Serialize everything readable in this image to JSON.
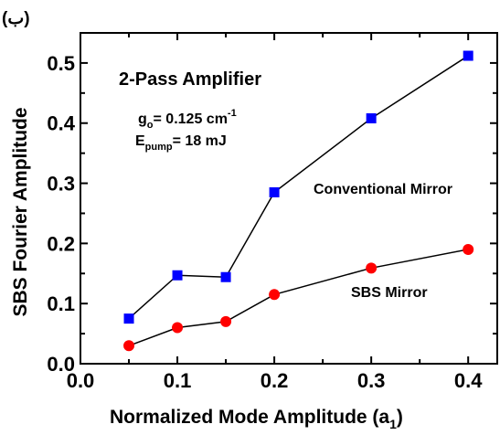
{
  "chart_data": {
    "type": "line",
    "panel_label": "(ب)",
    "title": "2-Pass Amplifier",
    "annotation_g": {
      "main": "g",
      "sub": "o",
      "rest": "= 0.125 cm",
      "sup": "-1"
    },
    "annotation_e": {
      "main": "E",
      "sub": "pump",
      "rest": "= 18 mJ"
    },
    "xlabel": {
      "main": "Normalized Mode Amplitude (a",
      "sub": "1",
      "close": ")"
    },
    "ylabel": "SBS  Fourier  Amplitude",
    "xlim": [
      0.0,
      0.43
    ],
    "ylim": [
      0.0,
      0.55
    ],
    "xticks": [
      0.0,
      0.1,
      0.2,
      0.3,
      0.4
    ],
    "xtick_labels": [
      "0.0",
      "0.1",
      "0.2",
      "0.3",
      "0.4"
    ],
    "yticks": [
      0.0,
      0.1,
      0.2,
      0.3,
      0.4,
      0.5
    ],
    "ytick_labels": [
      "0.0",
      "0.1",
      "0.2",
      "0.3",
      "0.4",
      "0.5"
    ],
    "grid": false,
    "series": [
      {
        "name": "Conventional Mirror",
        "marker": "square",
        "color": "#0000ff",
        "x": [
          0.05,
          0.1,
          0.15,
          0.2,
          0.3,
          0.4
        ],
        "y": [
          0.075,
          0.147,
          0.144,
          0.285,
          0.408,
          0.512
        ]
      },
      {
        "name": "SBS Mirror",
        "marker": "circle",
        "color": "#ff0000",
        "x": [
          0.05,
          0.1,
          0.15,
          0.2,
          0.3,
          0.4
        ],
        "y": [
          0.03,
          0.06,
          0.07,
          0.115,
          0.159,
          0.19
        ]
      }
    ]
  }
}
